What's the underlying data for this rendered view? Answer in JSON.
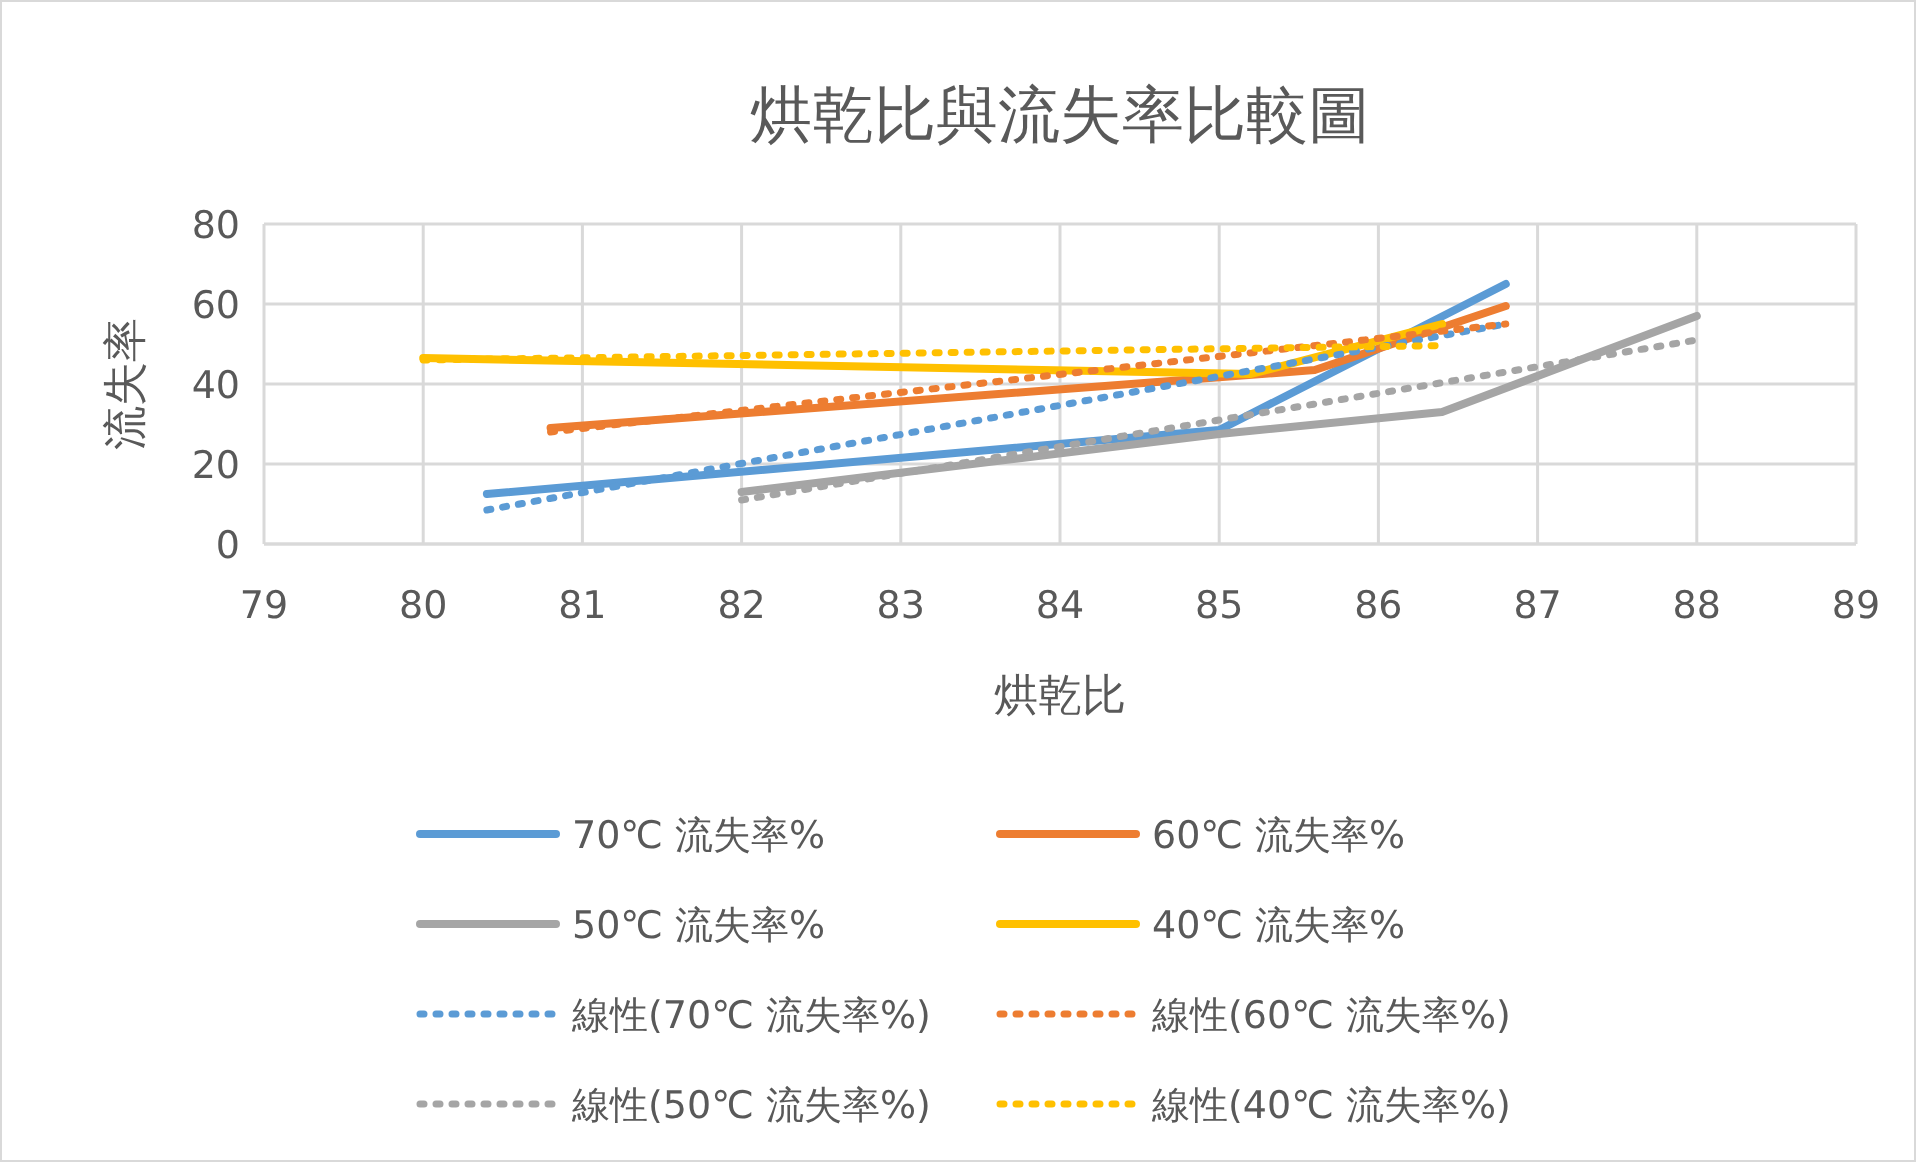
{
  "chart_data": {
    "type": "line",
    "title": "烘乾比與流失率比較圖",
    "xlabel": "烘乾比",
    "ylabel": "流失率",
    "xlim": [
      79,
      89
    ],
    "xticks": [
      79,
      80,
      81,
      82,
      83,
      84,
      85,
      86,
      87,
      88,
      89
    ],
    "ylim": [
      0,
      80
    ],
    "yticks": [
      0,
      20,
      40,
      60,
      80
    ],
    "grid": true,
    "legend": "bottom",
    "marker": "none",
    "series": [
      {
        "name": "70℃ 流失率%",
        "color": "#5b9bd5",
        "line_style": "solid",
        "x": [
          80.4,
          85,
          86.8
        ],
        "values": [
          12.5,
          28.5,
          65
        ]
      },
      {
        "name": "60℃ 流失率%",
        "color": "#ed7d31",
        "line_style": "solid",
        "x": [
          80.8,
          85.6,
          86.8
        ],
        "values": [
          29,
          43.5,
          59.5
        ]
      },
      {
        "name": "50℃ 流失率%",
        "color": "#a5a5a5",
        "line_style": "solid",
        "x": [
          82,
          85,
          86.4,
          88
        ],
        "values": [
          13,
          27.5,
          33,
          57
        ]
      },
      {
        "name": "40℃ 流失率%",
        "color": "#ffc000",
        "line_style": "solid",
        "x": [
          80,
          85.2,
          86.4
        ],
        "values": [
          46.5,
          42.5,
          55
        ]
      },
      {
        "name": "線性(70℃ 流失率%)",
        "color": "#5b9bd5",
        "line_style": "dotted",
        "x": [
          80.4,
          86.8
        ],
        "values": [
          8.5,
          55
        ]
      },
      {
        "name": "線性(60℃ 流失率%)",
        "color": "#ed7d31",
        "line_style": "dotted",
        "x": [
          80.8,
          86.8
        ],
        "values": [
          28,
          55
        ]
      },
      {
        "name": "線性(50℃ 流失率%)",
        "color": "#a5a5a5",
        "line_style": "dotted",
        "x": [
          82,
          88
        ],
        "values": [
          11,
          51
        ]
      },
      {
        "name": "線性(40℃ 流失率%)",
        "color": "#ffc000",
        "line_style": "dotted",
        "x": [
          80,
          86.4
        ],
        "values": [
          46,
          49.6
        ]
      }
    ]
  }
}
